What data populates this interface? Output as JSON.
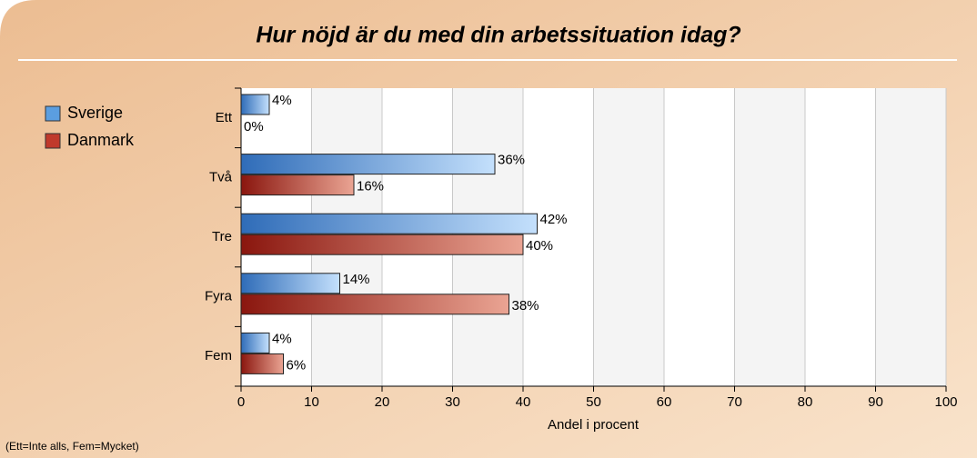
{
  "chart_data": {
    "type": "bar",
    "orientation": "horizontal",
    "title": "Hur nöjd är du med din arbetssituation idag?",
    "categories": [
      "Ett",
      "Två",
      "Tre",
      "Fyra",
      "Fem"
    ],
    "series": [
      {
        "name": "Sverige",
        "color": "#5b9ee0",
        "values": [
          4,
          36,
          42,
          14,
          4
        ],
        "value_labels": [
          "4%",
          "36%",
          "42%",
          "14%",
          "4%"
        ]
      },
      {
        "name": "Danmark",
        "color": "#c0392b",
        "values": [
          0,
          16,
          40,
          38,
          6
        ],
        "value_labels": [
          "0%",
          "16%",
          "40%",
          "38%",
          "6%"
        ]
      }
    ],
    "xlim": [
      0,
      100
    ],
    "xticks": [
      0,
      10,
      20,
      30,
      40,
      50,
      60,
      70,
      80,
      90,
      100
    ],
    "xlabel": "Andel i procent",
    "note": "(Ett=Inte alls, Fem=Mycket)",
    "legend": "top-left",
    "grid": true
  }
}
